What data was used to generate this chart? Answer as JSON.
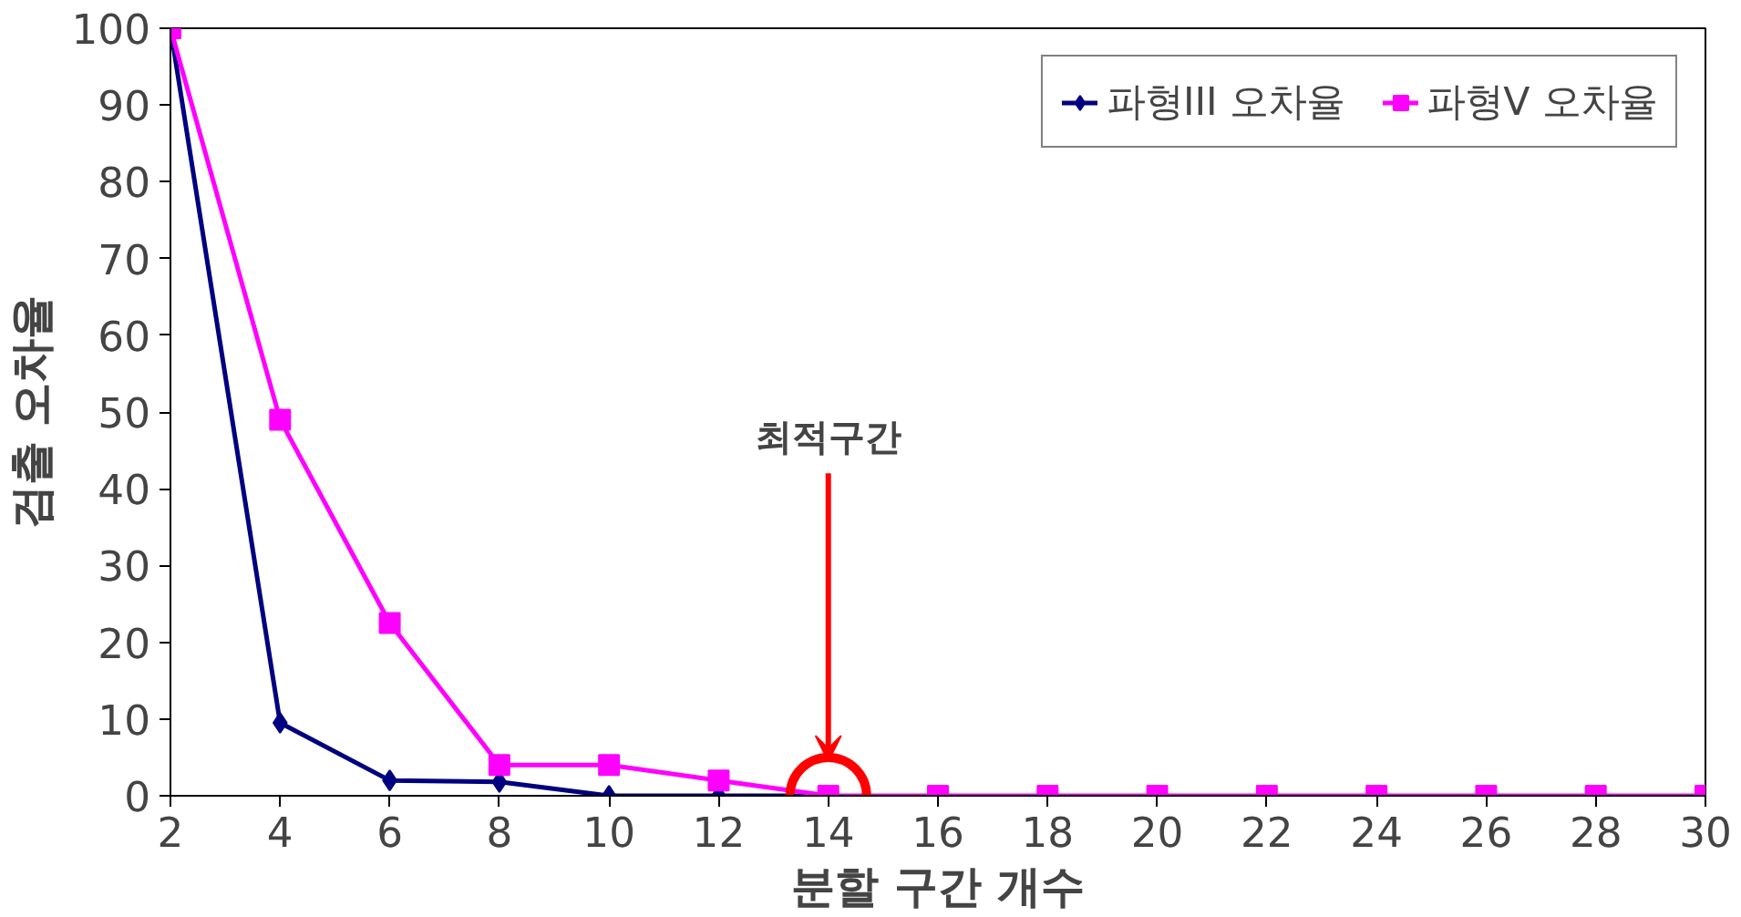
{
  "chart_data": {
    "type": "line",
    "xlabel": "분할 구간 개수",
    "ylabel": "검출 오차율",
    "x": [
      2,
      4,
      6,
      8,
      10,
      12,
      14,
      16,
      18,
      20,
      22,
      24,
      26,
      28,
      30
    ],
    "xlim": [
      2,
      30
    ],
    "xticks": [
      2,
      4,
      6,
      8,
      10,
      12,
      14,
      16,
      18,
      20,
      22,
      24,
      26,
      28,
      30
    ],
    "ylim": [
      0,
      100
    ],
    "yticks": [
      0,
      10,
      20,
      30,
      40,
      50,
      60,
      70,
      80,
      90,
      100
    ],
    "grid": false,
    "legend": "top right",
    "series": [
      {
        "name": "파형III 오차율",
        "color": "#000080",
        "marker": "diamond",
        "values": [
          100,
          9.5,
          2,
          1.8,
          0,
          0,
          0,
          null,
          null,
          null,
          null,
          null,
          null,
          null,
          null
        ]
      },
      {
        "name": "파형V 오차율",
        "color": "#ff00ff",
        "marker": "square",
        "values": [
          100,
          49,
          22.5,
          4,
          4,
          2,
          0,
          0,
          0,
          0,
          0,
          0,
          0,
          0,
          0
        ]
      }
    ],
    "annotations": [
      "최적구간"
    ]
  }
}
